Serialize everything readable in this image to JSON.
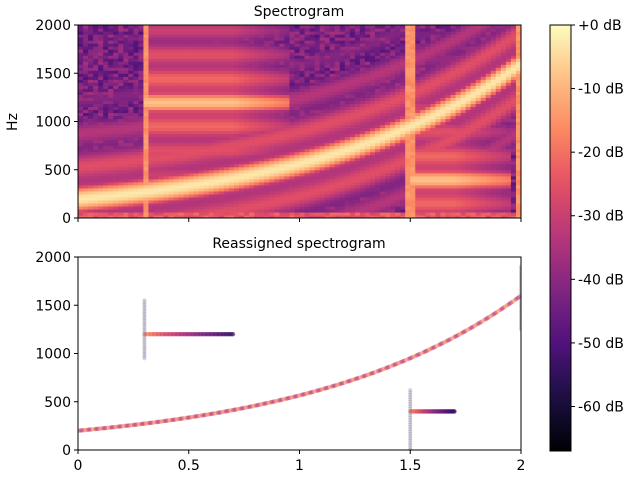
{
  "chart_data": [
    {
      "type": "heatmap",
      "title": "Spectrogram",
      "xlabel": "",
      "ylabel": "Hz",
      "xlim": [
        0,
        2
      ],
      "ylim": [
        0,
        2000
      ],
      "xticks": [
        0,
        0.5,
        1,
        1.5,
        2
      ],
      "xticklabels_visible": false,
      "yticks": [
        0,
        500,
        1000,
        1500,
        2000
      ],
      "ytick_labels": [
        "0",
        "500",
        "1000",
        "1500",
        "2000"
      ],
      "signal": {
        "chirp": {
          "start_hz": 200,
          "end_hz": 1600,
          "t_start": 0,
          "t_end": 2
        },
        "tones": [
          {
            "freq_hz": 1200,
            "t_start": 0.3,
            "t_end": 0.7
          },
          {
            "freq_hz": 400,
            "t_start": 1.5,
            "t_end": 1.7
          }
        ],
        "clicks": [
          0.3,
          1.5,
          2.0
        ]
      },
      "colormap": "magma"
    },
    {
      "type": "scatter",
      "title": "Reassigned spectrogram",
      "xlabel": "",
      "ylabel": "",
      "xlim": [
        0,
        2
      ],
      "ylim": [
        0,
        2000
      ],
      "xticks": [
        0,
        0.5,
        1,
        1.5,
        2
      ],
      "xtick_labels": [
        "0",
        "0.5",
        "1",
        "1.5",
        "2"
      ],
      "yticks": [
        0,
        500,
        1000,
        1500,
        2000
      ],
      "ytick_labels": [
        "0",
        "500",
        "1000",
        "1500",
        "2000"
      ],
      "series": [
        {
          "name": "chirp",
          "description": "exponential chirp",
          "start_hz": 200,
          "end_hz": 1600,
          "t_start": 0,
          "t_end": 2,
          "level_db": -5
        },
        {
          "name": "tone-1200",
          "freq_hz": 1200,
          "t_start": 0.3,
          "t_end": 0.7,
          "level_db_start": -10,
          "level_db_end": -50
        },
        {
          "name": "tone-400",
          "freq_hz": 400,
          "t_start": 1.5,
          "t_end": 1.7,
          "level_db_start": -10,
          "level_db_end": -50
        },
        {
          "name": "click-0.3",
          "time_s": 0.3,
          "freq_range_hz": [
            950,
            1550
          ]
        },
        {
          "name": "click-1.5",
          "time_s": 1.5,
          "freq_range_hz": [
            0,
            620
          ]
        },
        {
          "name": "click-2.0",
          "time_s": 2.0,
          "freq_range_hz": [
            1250,
            1900
          ]
        }
      ]
    }
  ],
  "colorbar": {
    "min_db": -67,
    "max_db": 0,
    "ticks": [
      0,
      -10,
      -20,
      -30,
      -40,
      -50,
      -60
    ],
    "tick_labels": [
      "+0 dB",
      "-10 dB",
      "-20 dB",
      "-30 dB",
      "-40 dB",
      "-50 dB",
      "-60 dB"
    ],
    "colormap": "magma"
  }
}
